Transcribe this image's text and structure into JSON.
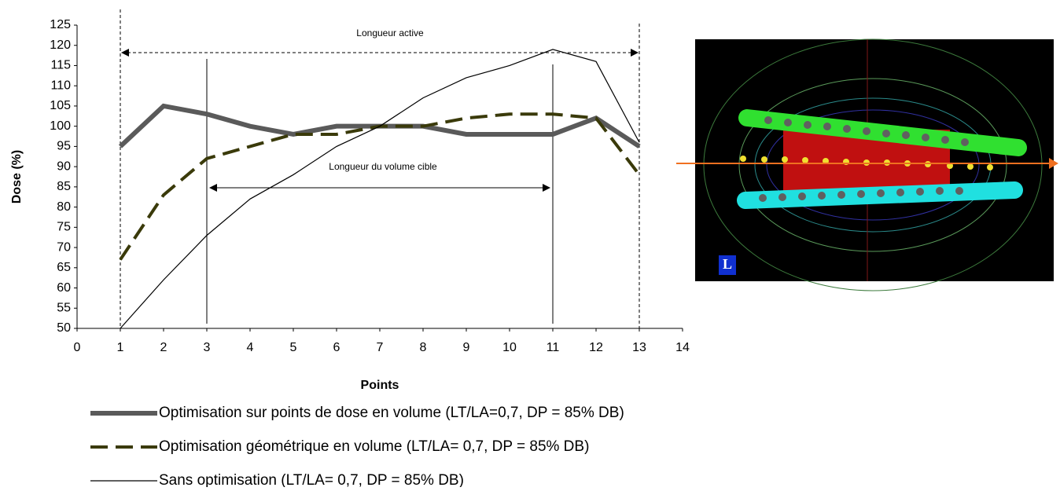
{
  "chart_data": {
    "type": "line",
    "x_label": "Points",
    "y_label": "Dose (%)",
    "x": [
      1,
      2,
      3,
      4,
      5,
      6,
      7,
      8,
      9,
      10,
      11,
      12,
      13
    ],
    "series": [
      {
        "name": "Optimisation sur points de dose en volume (LT/LA=0,7, DP = 85% DB)",
        "color": "#5a5a5a",
        "style": "thick",
        "values": [
          95,
          105,
          103,
          100,
          98,
          100,
          100,
          100,
          98,
          98,
          98,
          102,
          95
        ]
      },
      {
        "name": "Optimisation géométrique en volume (LT/LA= 0,7, DP = 85% DB)",
        "color": "#3a3a0a",
        "style": "dashed",
        "values": [
          67,
          83,
          92,
          95,
          98,
          98,
          100,
          100,
          102,
          103,
          103,
          102,
          88
        ]
      },
      {
        "name": "Sans optimisation  (LT/LA= 0,7, DP = 85% DB)",
        "color": "#000000",
        "style": "thin",
        "values": [
          50,
          62,
          73,
          82,
          88,
          95,
          100,
          107,
          112,
          115,
          119,
          116,
          96
        ]
      }
    ],
    "xlim": [
      0,
      14
    ],
    "xticks": [
      0,
      1,
      2,
      3,
      4,
      5,
      6,
      7,
      8,
      9,
      10,
      11,
      12,
      13,
      14
    ],
    "ylim": [
      50,
      125
    ],
    "yticks": [
      50,
      55,
      60,
      65,
      70,
      75,
      80,
      85,
      90,
      95,
      100,
      105,
      110,
      115,
      120,
      125
    ],
    "annotations": [
      "Longueur active",
      "Longueur du volume cible"
    ],
    "image_icon": "L"
  }
}
